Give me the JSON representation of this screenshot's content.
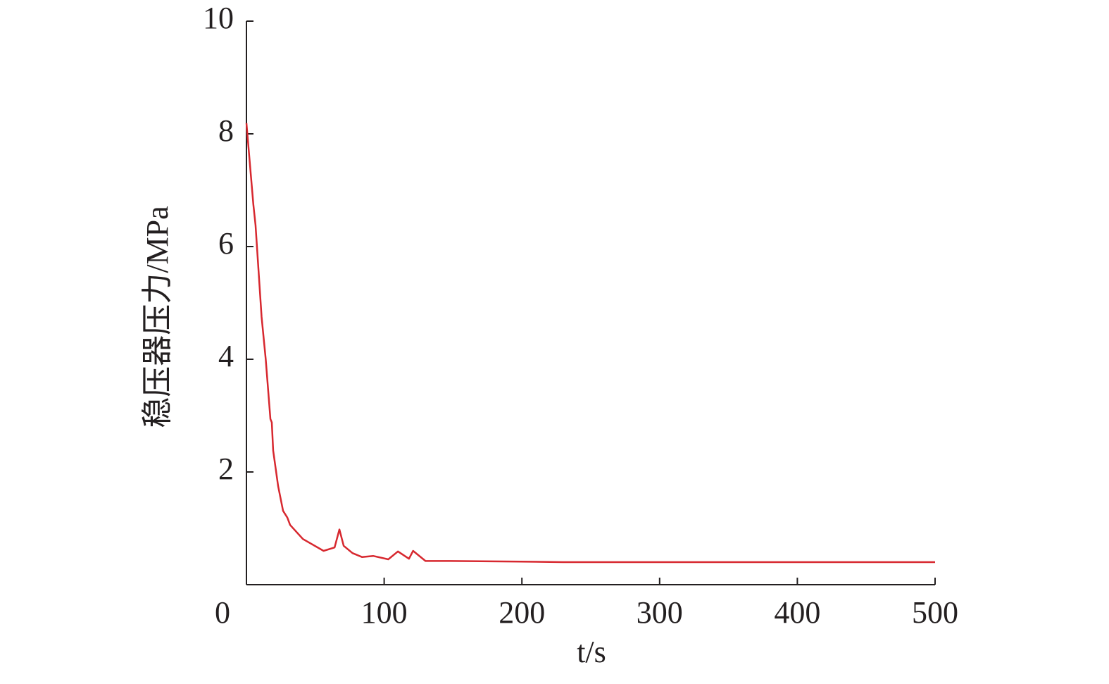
{
  "chart_data": {
    "type": "line",
    "x_label": "t/s",
    "y_label": "稳压器压力/MPa",
    "x": [
      0,
      5,
      6.6,
      11,
      14,
      17.4,
      18.4,
      19.4,
      23,
      26.6,
      29.7,
      31.7,
      41,
      56,
      64,
      67.5,
      70.6,
      77,
      84,
      92,
      103,
      110,
      118,
      121,
      130,
      148,
      199,
      230,
      332,
      500
    ],
    "series": [
      {
        "name": "稳压器压力",
        "color": "#d7282f",
        "values": [
          8.19,
          6.75,
          6.38,
          4.75,
          4.0,
          2.94,
          2.88,
          2.38,
          1.75,
          1.31,
          1.19,
          1.06,
          0.81,
          0.6,
          0.66,
          0.98,
          0.69,
          0.56,
          0.49,
          0.51,
          0.45,
          0.59,
          0.46,
          0.6,
          0.42,
          0.42,
          0.41,
          0.4,
          0.4,
          0.4
        ]
      }
    ],
    "xlim": [
      0,
      500
    ],
    "xticks": [
      0,
      100,
      200,
      300,
      400,
      500
    ],
    "ylim": [
      0,
      10
    ],
    "yticks": [
      2,
      4,
      6,
      8,
      10
    ],
    "grid": false
  }
}
